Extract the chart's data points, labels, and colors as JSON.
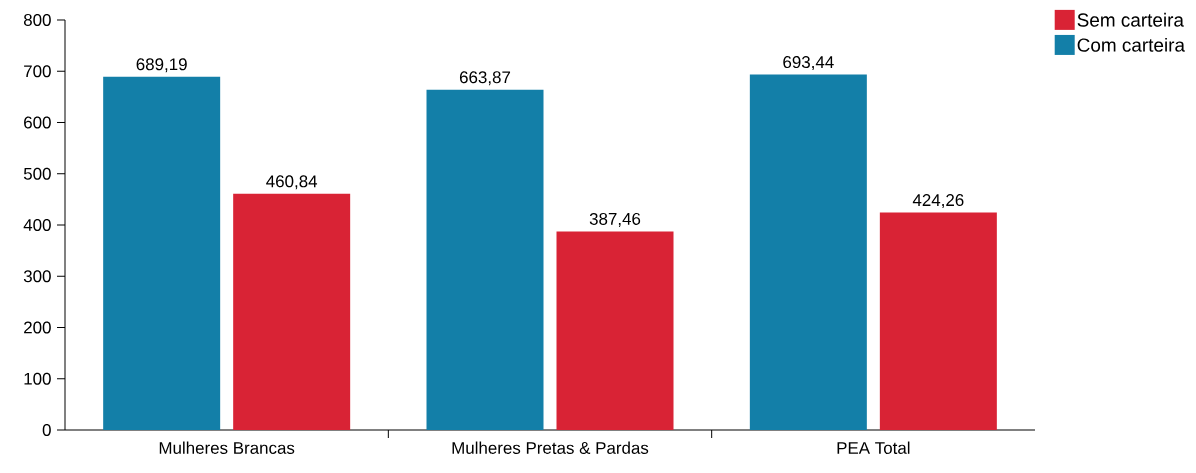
{
  "chart_data": {
    "type": "bar",
    "categories": [
      "Mulheres Brancas",
      "Mulheres Pretas & Pardas",
      "PEA Total"
    ],
    "series": [
      {
        "name": "Com carteira",
        "color": "#137fa8",
        "values": [
          689.19,
          663.87,
          693.44
        ],
        "value_labels": [
          "689,19",
          "663,87",
          "693,44"
        ]
      },
      {
        "name": "Sem carteira",
        "color": "#d92335",
        "values": [
          460.84,
          387.46,
          424.26
        ],
        "value_labels": [
          "460,84",
          "387,46",
          "424,26"
        ]
      }
    ],
    "ylim": [
      0,
      800
    ],
    "yticks": [
      0,
      100,
      200,
      300,
      400,
      500,
      600,
      700,
      800
    ],
    "grid": false,
    "legend": "top right"
  }
}
